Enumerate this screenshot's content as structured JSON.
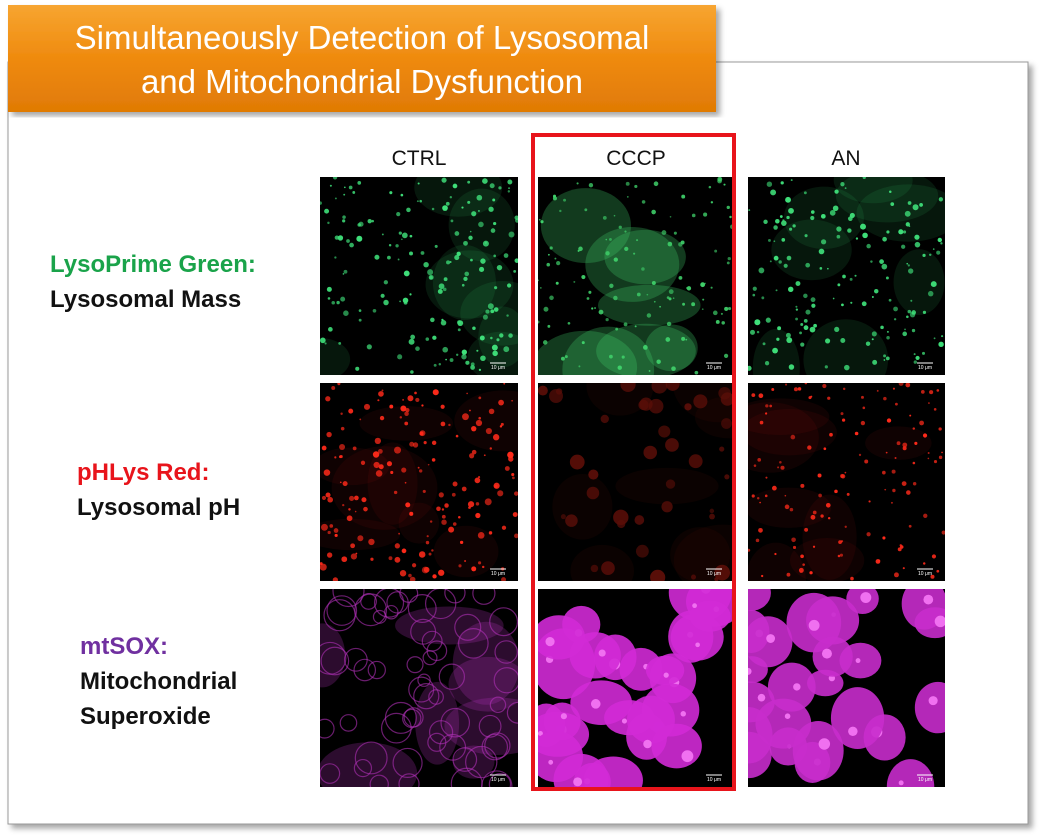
{
  "title": [
    "Simultaneously Detection of Lysosomal",
    "and Mitochondrial Dysfunction"
  ],
  "columns": [
    "CTRL",
    "CCCP",
    "AN"
  ],
  "rows": [
    {
      "stain": "LysoPrime Green:",
      "description": [
        "Lysosomal Mass"
      ]
    },
    {
      "stain": "pHLys Red:",
      "description": [
        "Lysosomal pH"
      ]
    },
    {
      "stain": "mtSOX:",
      "description": [
        "Mitochondrial",
        "Superoxide"
      ]
    }
  ],
  "scale_bar": "10 μm"
}
